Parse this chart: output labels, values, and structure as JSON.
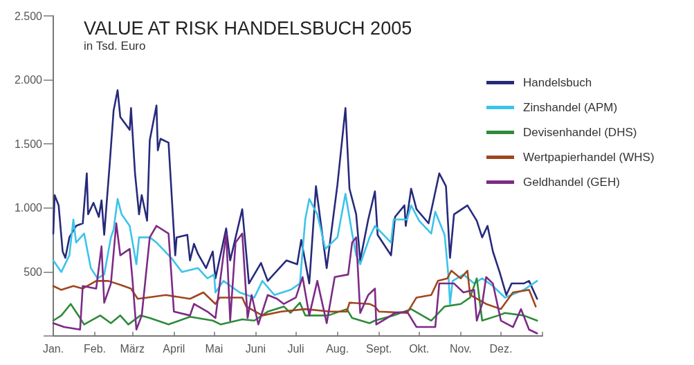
{
  "chart_data": {
    "type": "line",
    "title": "VALUE AT RISK HANDELSBUCH 2005",
    "subtitle": "in Tsd. Euro",
    "legend": "top right",
    "marker": "none",
    "line_style": "solid",
    "xlim": [
      "2005-01-01",
      "2006-01-01"
    ],
    "xticks": [
      {
        "value": "2005-01-01",
        "label": "Jan."
      },
      {
        "value": "2005-02-01",
        "label": "Feb."
      },
      {
        "value": "2005-03-01",
        "label": "März"
      },
      {
        "value": "2005-04-01",
        "label": "April"
      },
      {
        "value": "2005-05-01",
        "label": "Mai"
      },
      {
        "value": "2005-06-01",
        "label": "Juni"
      },
      {
        "value": "2005-07-01",
        "label": "Juli"
      },
      {
        "value": "2005-08-01",
        "label": "Aug."
      },
      {
        "value": "2005-09-01",
        "label": "Sept."
      },
      {
        "value": "2005-10-01",
        "label": "Okt."
      },
      {
        "value": "2005-11-01",
        "label": "Nov."
      },
      {
        "value": "2005-12-01",
        "label": "Dez."
      },
      {
        "value": "2006-01-01",
        "label": null
      }
    ],
    "ylim": [
      0,
      2500
    ],
    "yticks": [
      {
        "value": 0,
        "label": null
      },
      500,
      {
        "value": 1000,
        "label": "1.000"
      },
      {
        "value": 1500,
        "label": "1.500"
      },
      {
        "value": 2000,
        "label": "2.000"
      },
      {
        "value": 2500,
        "label": "2.500"
      }
    ],
    "series": [
      {
        "name": "Handelsbuch",
        "color": "#262a7a",
        "x": [
          "2005-01-01",
          "2005-01-02",
          "2005-01-05",
          "2005-01-08",
          "2005-01-10",
          "2005-01-13",
          "2005-01-18",
          "2005-01-23",
          "2005-01-26",
          "2005-01-27",
          "2005-01-31",
          "2005-02-04",
          "2005-02-06",
          "2005-02-08",
          "2005-02-12",
          "2005-02-15",
          "2005-02-18",
          "2005-02-20",
          "2005-02-27",
          "2005-02-28",
          "2005-03-03",
          "2005-03-06",
          "2005-03-08",
          "2005-03-12",
          "2005-03-14",
          "2005-03-19",
          "2005-03-20",
          "2005-03-22",
          "2005-03-28",
          "2005-04-02",
          "2005-04-03",
          "2005-04-11",
          "2005-04-13",
          "2005-04-16",
          "2005-04-19",
          "2005-04-25",
          "2005-04-30",
          "2005-05-02",
          "2005-05-10",
          "2005-05-13",
          "2005-05-22",
          "2005-05-27",
          "2005-06-05",
          "2005-06-10",
          "2005-06-24",
          "2005-07-02",
          "2005-07-05",
          "2005-07-11",
          "2005-07-16",
          "2005-07-24",
          "2005-08-01",
          "2005-08-07",
          "2005-08-10",
          "2005-08-15",
          "2005-08-18",
          "2005-08-24",
          "2005-08-29",
          "2005-08-31",
          "2005-09-10",
          "2005-09-13",
          "2005-09-20",
          "2005-09-21",
          "2005-09-25",
          "2005-09-29",
          "2005-10-08",
          "2005-10-16",
          "2005-10-21",
          "2005-10-24",
          "2005-10-27",
          "2005-11-06",
          "2005-11-13",
          "2005-11-17",
          "2005-11-21",
          "2005-11-25",
          "2005-11-30",
          "2005-12-05",
          "2005-12-09",
          "2005-12-18",
          "2005-12-22",
          "2005-12-28"
        ],
        "values": [
          800,
          1100,
          1020,
          660,
          610,
          770,
          860,
          880,
          1270,
          950,
          1040,
          930,
          1060,
          790,
          1330,
          1760,
          1920,
          1710,
          1610,
          1780,
          1270,
          950,
          1100,
          900,
          1530,
          1800,
          1450,
          1540,
          1510,
          630,
          770,
          790,
          590,
          720,
          640,
          530,
          660,
          450,
          840,
          590,
          990,
          410,
          570,
          430,
          590,
          560,
          750,
          410,
          1170,
          530,
          1180,
          1780,
          1150,
          950,
          590,
          910,
          1130,
          790,
          630,
          930,
          1020,
          860,
          1150,
          990,
          880,
          1270,
          1170,
          610,
          950,
          1020,
          900,
          770,
          860,
          660,
          500,
          320,
          410,
          410,
          430,
          290
        ]
      },
      {
        "name": "Zinshandel (APM)",
        "color": "#3cc3ea",
        "x": [
          "2005-01-01",
          "2005-01-07",
          "2005-01-13",
          "2005-01-16",
          "2005-01-18",
          "2005-01-24",
          "2005-01-29",
          "2005-02-03",
          "2005-02-08",
          "2005-02-13",
          "2005-02-15",
          "2005-02-18",
          "2005-02-21",
          "2005-02-27",
          "2005-03-04",
          "2005-03-06",
          "2005-03-14",
          "2005-03-19",
          "2005-03-30",
          "2005-04-07",
          "2005-04-19",
          "2005-04-26",
          "2005-05-01",
          "2005-05-02",
          "2005-05-08",
          "2005-05-20",
          "2005-05-31",
          "2005-06-06",
          "2005-06-15",
          "2005-06-27",
          "2005-07-04",
          "2005-07-08",
          "2005-07-11",
          "2005-07-17",
          "2005-07-23",
          "2005-08-01",
          "2005-08-07",
          "2005-08-12",
          "2005-08-15",
          "2005-08-18",
          "2005-08-25",
          "2005-08-29",
          "2005-09-10",
          "2005-09-12",
          "2005-09-22",
          "2005-09-25",
          "2005-10-01",
          "2005-10-10",
          "2005-10-13",
          "2005-10-20",
          "2005-10-23",
          "2005-10-24",
          "2005-10-26",
          "2005-11-03",
          "2005-11-11",
          "2005-11-17",
          "2005-11-25",
          "2005-12-04",
          "2005-12-18",
          "2005-12-28"
        ],
        "values": [
          590,
          500,
          630,
          910,
          730,
          800,
          530,
          450,
          480,
          770,
          830,
          1070,
          950,
          860,
          560,
          770,
          770,
          730,
          610,
          500,
          530,
          450,
          480,
          340,
          430,
          340,
          300,
          430,
          320,
          360,
          410,
          910,
          1070,
          950,
          680,
          770,
          1110,
          800,
          630,
          560,
          770,
          860,
          730,
          910,
          910,
          1020,
          900,
          800,
          970,
          790,
          450,
          250,
          430,
          480,
          410,
          450,
          390,
          300,
          360,
          430
        ]
      },
      {
        "name": "Devisenhandel (DHS)",
        "color": "#2e8b3a",
        "x": [
          "2005-01-01",
          "2005-01-07",
          "2005-01-14",
          "2005-01-21",
          "2005-01-24",
          "2005-02-05",
          "2005-02-13",
          "2005-02-20",
          "2005-02-26",
          "2005-03-07",
          "2005-03-14",
          "2005-03-28",
          "2005-04-13",
          "2005-04-30",
          "2005-05-06",
          "2005-05-22",
          "2005-05-31",
          "2005-06-10",
          "2005-06-22",
          "2005-06-27",
          "2005-07-04",
          "2005-07-08",
          "2005-07-25",
          "2005-08-08",
          "2005-08-12",
          "2005-08-25",
          "2005-08-29",
          "2005-09-12",
          "2005-09-25",
          "2005-10-10",
          "2005-10-20",
          "2005-11-01",
          "2005-11-08",
          "2005-11-13",
          "2005-11-17",
          "2005-11-29",
          "2005-12-04",
          "2005-12-18",
          "2005-12-28"
        ],
        "values": [
          120,
          160,
          250,
          140,
          90,
          160,
          100,
          160,
          90,
          160,
          140,
          90,
          150,
          120,
          90,
          130,
          120,
          190,
          230,
          180,
          260,
          160,
          160,
          210,
          140,
          100,
          120,
          160,
          210,
          120,
          230,
          250,
          300,
          450,
          120,
          160,
          180,
          160,
          120
        ]
      },
      {
        "name": "Wertpapierhandel (WHS)",
        "color": "#a0461e",
        "x": [
          "2005-01-01",
          "2005-01-07",
          "2005-01-16",
          "2005-01-23",
          "2005-02-02",
          "2005-02-11",
          "2005-02-20",
          "2005-02-28",
          "2005-03-05",
          "2005-03-12",
          "2005-03-26",
          "2005-04-13",
          "2005-04-23",
          "2005-05-02",
          "2005-05-05",
          "2005-05-22",
          "2005-05-25",
          "2005-06-06",
          "2005-06-20",
          "2005-07-08",
          "2005-07-27",
          "2005-08-08",
          "2005-08-10",
          "2005-08-25",
          "2005-08-29",
          "2005-09-01",
          "2005-09-22",
          "2005-09-29",
          "2005-10-10",
          "2005-10-15",
          "2005-10-22",
          "2005-10-25",
          "2005-11-01",
          "2005-11-06",
          "2005-11-08",
          "2005-11-20",
          "2005-12-01",
          "2005-12-10",
          "2005-12-22",
          "2005-12-27"
        ],
        "values": [
          390,
          360,
          390,
          370,
          430,
          430,
          400,
          370,
          290,
          300,
          320,
          290,
          340,
          250,
          300,
          300,
          230,
          160,
          190,
          210,
          190,
          190,
          260,
          250,
          230,
          190,
          180,
          300,
          320,
          430,
          450,
          510,
          450,
          510,
          320,
          250,
          210,
          340,
          360,
          230
        ]
      },
      {
        "name": "Geldhandel (GEH)",
        "color": "#7d2a86",
        "x": [
          "2005-01-01",
          "2005-01-09",
          "2005-01-21",
          "2005-01-23",
          "2005-02-02",
          "2005-02-06",
          "2005-02-08",
          "2005-02-13",
          "2005-02-17",
          "2005-02-20",
          "2005-02-27",
          "2005-03-01",
          "2005-03-04",
          "2005-03-08",
          "2005-03-14",
          "2005-03-19",
          "2005-03-28",
          "2005-04-01",
          "2005-04-13",
          "2005-04-16",
          "2005-04-26",
          "2005-05-02",
          "2005-05-10",
          "2005-05-13",
          "2005-05-17",
          "2005-05-22",
          "2005-05-26",
          "2005-05-29",
          "2005-06-03",
          "2005-06-10",
          "2005-06-17",
          "2005-06-22",
          "2005-07-01",
          "2005-07-06",
          "2005-07-11",
          "2005-07-17",
          "2005-07-24",
          "2005-07-30",
          "2005-08-09",
          "2005-08-12",
          "2005-08-15",
          "2005-08-18",
          "2005-08-24",
          "2005-08-29",
          "2005-08-30",
          "2005-09-07",
          "2005-09-13",
          "2005-09-22",
          "2005-09-29",
          "2005-10-13",
          "2005-10-16",
          "2005-10-27",
          "2005-11-03",
          "2005-11-11",
          "2005-11-13",
          "2005-11-17",
          "2005-11-20",
          "2005-11-25",
          "2005-12-01",
          "2005-12-10",
          "2005-12-16",
          "2005-12-22",
          "2005-12-28"
        ],
        "values": [
          100,
          70,
          50,
          390,
          370,
          700,
          260,
          410,
          880,
          630,
          680,
          450,
          50,
          160,
          770,
          860,
          800,
          190,
          160,
          250,
          190,
          140,
          800,
          120,
          730,
          800,
          140,
          320,
          90,
          320,
          290,
          250,
          300,
          460,
          160,
          430,
          100,
          460,
          480,
          730,
          770,
          180,
          320,
          370,
          90,
          140,
          180,
          190,
          70,
          70,
          410,
          410,
          340,
          360,
          120,
          250,
          460,
          410,
          120,
          70,
          210,
          50,
          20
        ]
      }
    ]
  }
}
